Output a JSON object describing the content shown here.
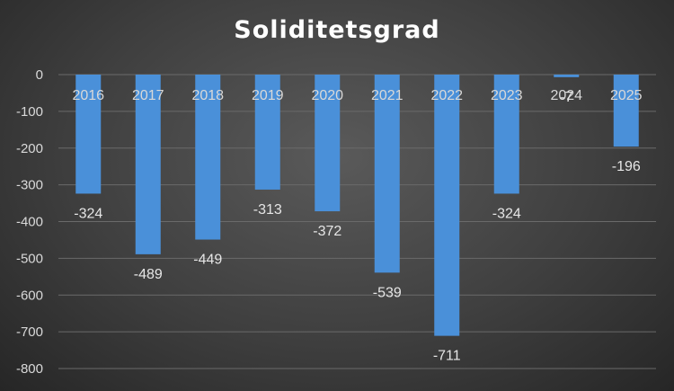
{
  "chart_data": {
    "type": "bar",
    "title": "Soliditetsgrad",
    "categories": [
      "2016",
      "2017",
      "2018",
      "2019",
      "2020",
      "2021",
      "2022",
      "2023",
      "2024",
      "2025"
    ],
    "values": [
      -324,
      -489,
      -449,
      -313,
      -372,
      -539,
      -711,
      -324,
      -7,
      -196
    ],
    "data_labels": [
      "-324",
      "-489",
      "-449",
      "-313",
      "-372",
      "-539",
      "-711",
      "-324",
      "-7",
      "-196"
    ],
    "ylim": [
      -800,
      0
    ],
    "yticks": [
      "0",
      "-100",
      "-200",
      "-300",
      "-400",
      "-500",
      "-600",
      "-700",
      "-800"
    ],
    "grid": true,
    "bar_color": "#4a90d9"
  }
}
